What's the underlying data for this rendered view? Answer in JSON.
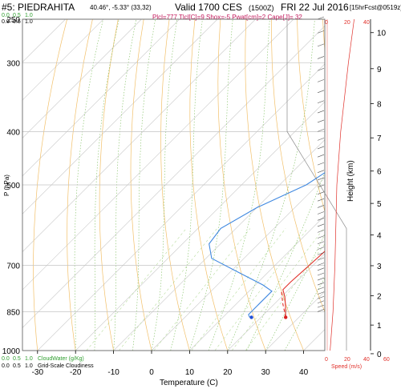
{
  "header": {
    "station": "#5: PIEDRAHITA",
    "coords": "40.46°, -5.33° (33,32)",
    "valid": "Valid 1700 CES",
    "utc": "(1500Z)",
    "date": "FRI 22 Jul 2016",
    "forecast": "[15hrFcst@0519z]",
    "indices": "Plcl=777 Tlcl[C]=9 Shox=-5 Pwat[cm]=2 Cape[J]= 32"
  },
  "cloud_scale": {
    "top_row1": [
      "0.5",
      "1.0"
    ],
    "top_row2": [
      "0.0",
      "0.5",
      "1.0"
    ],
    "top_row1_first": "0.0",
    "bottom_row1": [
      "0.0",
      "0.5",
      "1.0"
    ],
    "bottom_row1_label": "CloudWater (g/Kg)",
    "bottom_row2": [
      "0.0",
      "0.5",
      "1.0"
    ],
    "bottom_row2_label": "Grid-Scale Cloudiness"
  },
  "speed_axis": {
    "top_ticks": [
      "0",
      "20",
      "40"
    ],
    "bottom_ticks": [
      "0",
      "20",
      "40",
      "60"
    ],
    "label": "Speed (m/s)"
  },
  "chart_data": {
    "type": "line",
    "title": "#5: PIEDRAHITA",
    "xlabel": "Temperature (C)",
    "ylabel": "P (hPa)",
    "y2label": "Height (km)",
    "x_ticks": [
      -30,
      -20,
      -10,
      0,
      10,
      20,
      30,
      40
    ],
    "xlim": [
      -35,
      46
    ],
    "y_scale": "log-pressure",
    "y_ticks": [
      250,
      300,
      400,
      500,
      700,
      850,
      1000
    ],
    "ylim": [
      1000,
      250
    ],
    "height_ticks": [
      0,
      1,
      2,
      3,
      4,
      5,
      6,
      7,
      8,
      9,
      10
    ],
    "series": [
      {
        "name": "Temperature",
        "color": "#e0302a",
        "points": [
          [
            -5,
            250
          ],
          [
            -2,
            300
          ],
          [
            2,
            350
          ],
          [
            5.5,
            400
          ],
          [
            9.5,
            450
          ],
          [
            13,
            500
          ],
          [
            16.5,
            550
          ],
          [
            18.5,
            600
          ],
          [
            19.5,
            650
          ],
          [
            19,
            700
          ],
          [
            18.5,
            750
          ],
          [
            18.5,
            775
          ],
          [
            21,
            800
          ],
          [
            23.5,
            830
          ],
          [
            26.5,
            870
          ]
        ]
      },
      {
        "name": "Dewpoint",
        "color": "#3f88e0",
        "points": [
          [
            -14,
            250
          ],
          [
            -12.5,
            300
          ],
          [
            -9,
            350
          ],
          [
            0.5,
            400
          ],
          [
            0.5,
            450
          ],
          [
            -3,
            500
          ],
          [
            -10,
            550
          ],
          [
            -14,
            600
          ],
          [
            -13,
            640
          ],
          [
            -8.5,
            680
          ],
          [
            2,
            720
          ],
          [
            12,
            760
          ],
          [
            16,
            780
          ],
          [
            16,
            820
          ],
          [
            16,
            840
          ],
          [
            16,
            860
          ],
          [
            17,
            870
          ]
        ]
      },
      {
        "name": "Parcel",
        "color": "#e0302a",
        "dashed": true,
        "points": [
          [
            26.5,
            870
          ],
          [
            22,
            820
          ],
          [
            18.5,
            780
          ]
        ]
      }
    ],
    "markers": [
      {
        "name": "surface-dewpoint",
        "color": "#1f4fd8",
        "x": 17.5,
        "p": 870
      },
      {
        "name": "surface-temperature",
        "color": "#d81f1f",
        "x": 26.5,
        "p": 870
      }
    ],
    "wind_speed_profile": [
      [
        3,
        1000
      ],
      [
        6,
        850
      ],
      [
        8,
        700
      ],
      [
        10,
        500
      ],
      [
        14,
        400
      ],
      [
        22,
        300
      ],
      [
        28,
        250
      ]
    ]
  }
}
